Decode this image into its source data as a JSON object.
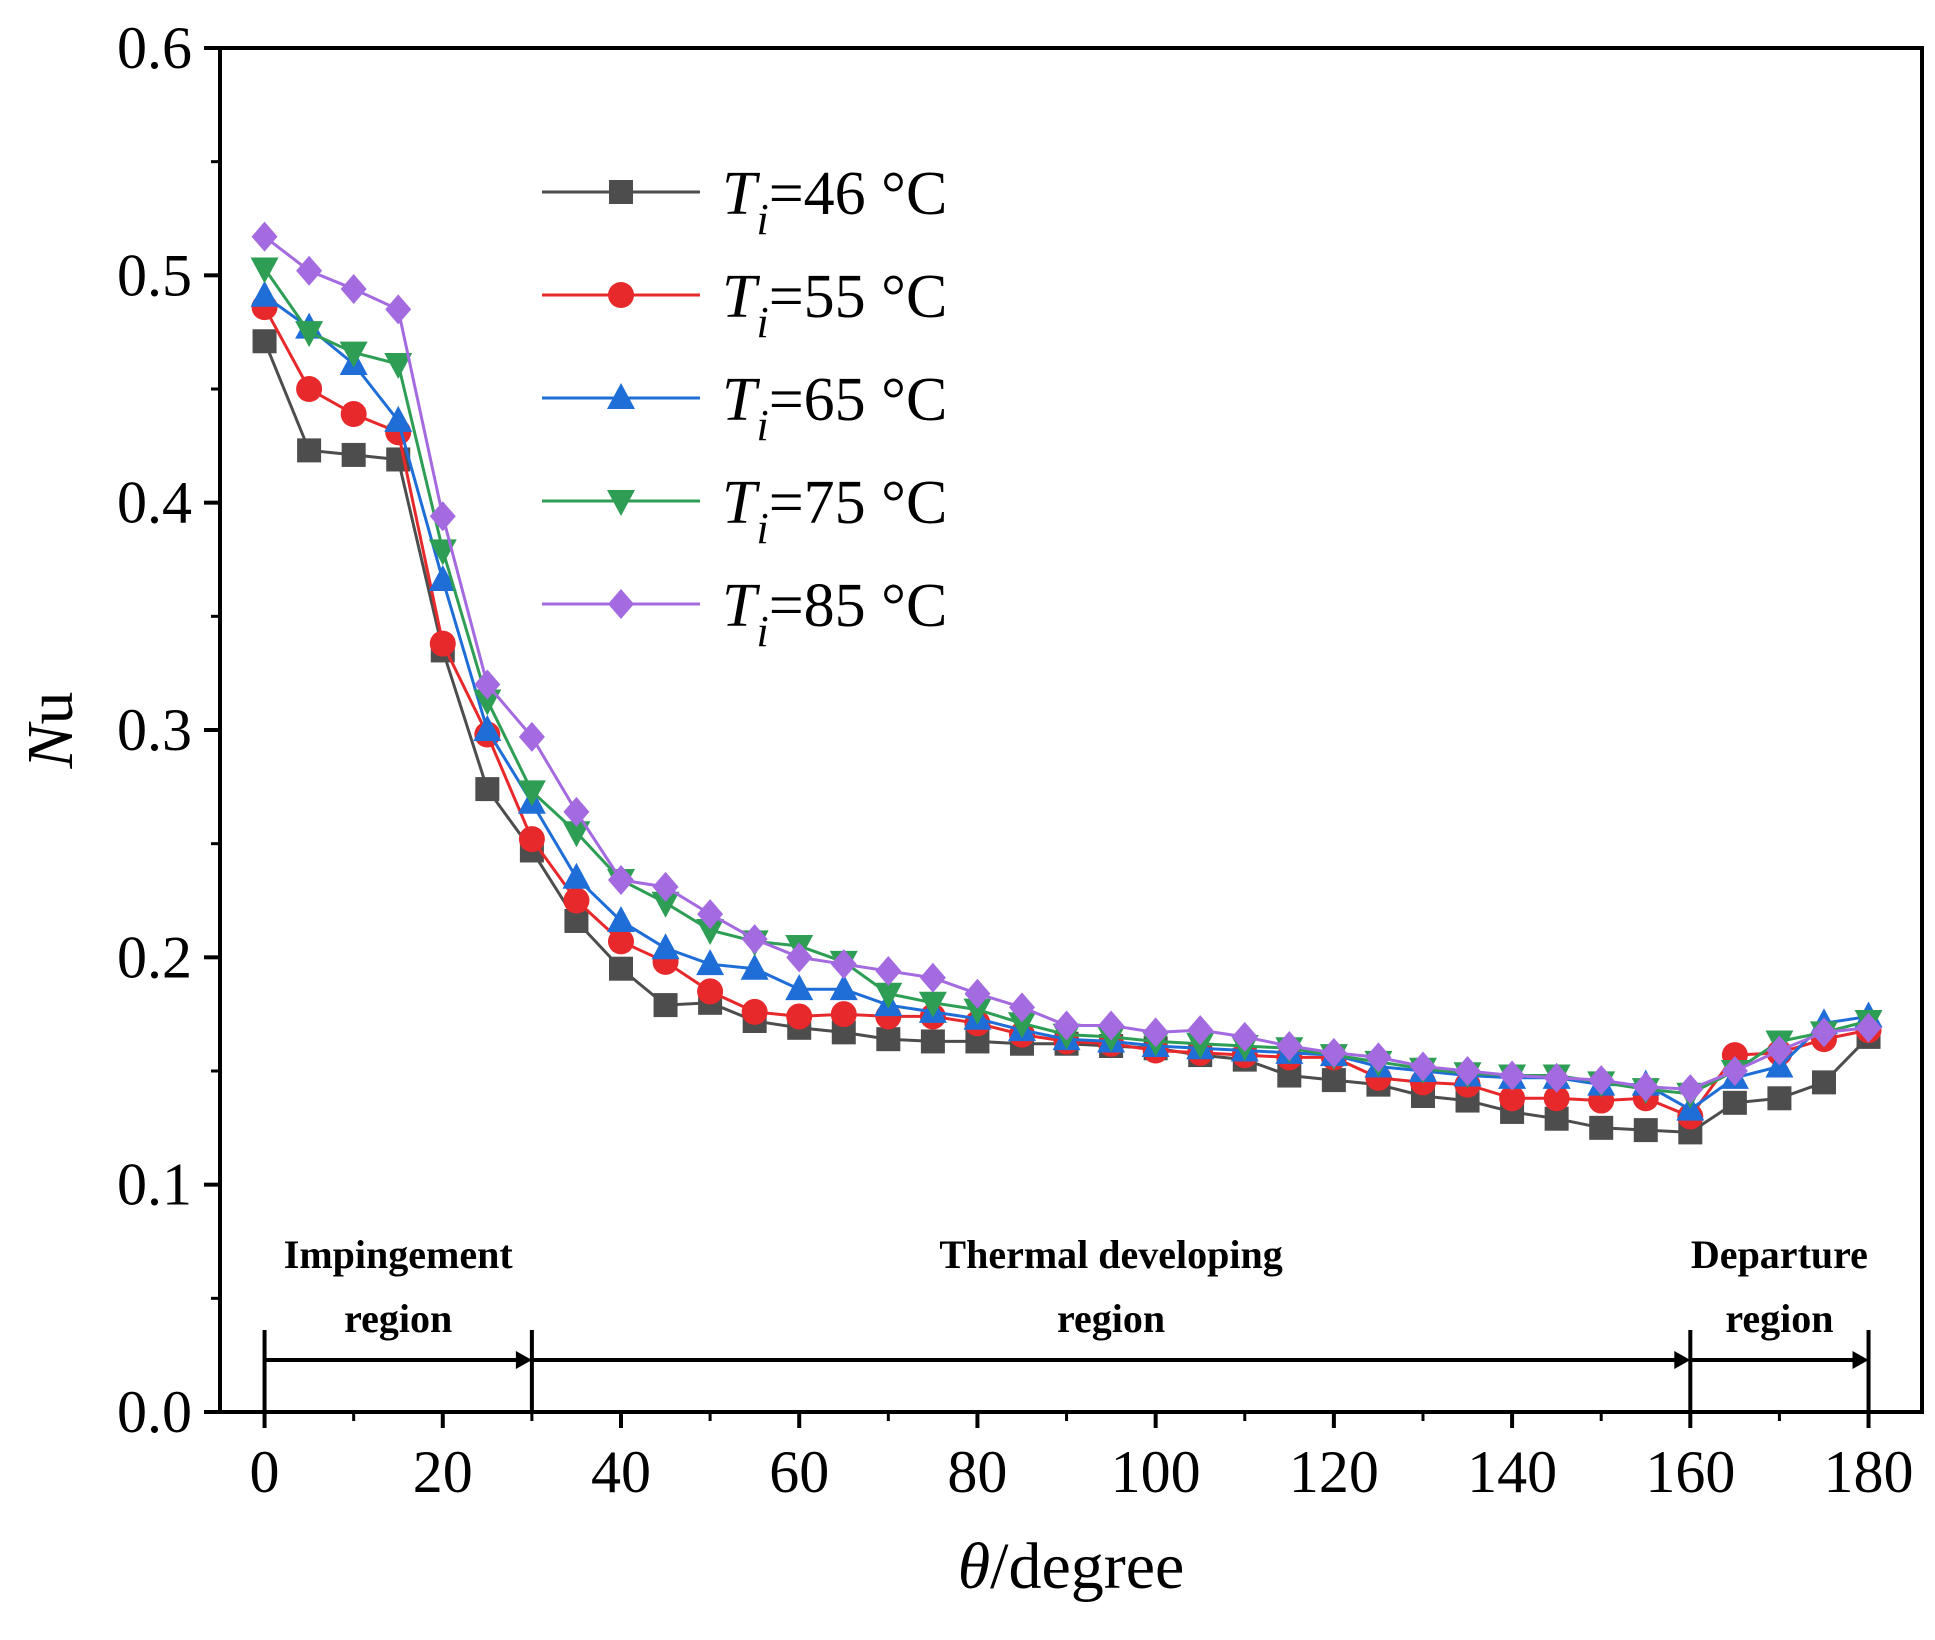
{
  "chart_data": {
    "type": "line",
    "title": "",
    "xlabel": {
      "symbol": "θ",
      "text": "/degree"
    },
    "ylabel": {
      "symbol": "N",
      "text": "u"
    },
    "xlim": [
      -5,
      186
    ],
    "ylim": [
      0,
      0.6
    ],
    "xticks": [
      0,
      20,
      40,
      60,
      80,
      100,
      120,
      140,
      160,
      180
    ],
    "yticks": [
      0.0,
      0.1,
      0.2,
      0.3,
      0.4,
      0.5,
      0.6
    ],
    "ytick_labels": [
      "0.0",
      "0.1",
      "0.2",
      "0.3",
      "0.4",
      "0.5",
      "0.6"
    ],
    "legend_position": "upper-left",
    "x": [
      0,
      5,
      10,
      15,
      20,
      25,
      30,
      35,
      40,
      45,
      50,
      55,
      60,
      65,
      70,
      75,
      80,
      85,
      90,
      95,
      100,
      105,
      110,
      115,
      120,
      125,
      130,
      135,
      140,
      145,
      150,
      155,
      160,
      165,
      170,
      175,
      180
    ],
    "series": [
      {
        "name": "46 °C",
        "label_prefix": "T",
        "label_sub": "i",
        "label_suffix": "=46 °C",
        "color": "#4d4d4d",
        "marker": "square",
        "values": [
          0.471,
          0.423,
          0.421,
          0.419,
          0.335,
          0.274,
          0.247,
          0.216,
          0.195,
          0.179,
          0.18,
          0.172,
          0.169,
          0.167,
          0.164,
          0.163,
          0.163,
          0.162,
          0.162,
          0.161,
          0.16,
          0.157,
          0.155,
          0.148,
          0.146,
          0.144,
          0.139,
          0.137,
          0.132,
          0.129,
          0.125,
          0.124,
          0.123,
          0.136,
          0.138,
          0.145,
          0.165
        ]
      },
      {
        "name": "55 °C",
        "label_prefix": "T",
        "label_sub": "i",
        "label_suffix": "=55 °C",
        "color": "#e8292b",
        "marker": "circle",
        "values": [
          0.486,
          0.45,
          0.439,
          0.431,
          0.338,
          0.298,
          0.252,
          0.225,
          0.207,
          0.198,
          0.185,
          0.176,
          0.174,
          0.175,
          0.174,
          0.174,
          0.171,
          0.166,
          0.163,
          0.162,
          0.159,
          0.158,
          0.157,
          0.156,
          0.156,
          0.147,
          0.145,
          0.144,
          0.138,
          0.138,
          0.137,
          0.138,
          0.13,
          0.157,
          0.158,
          0.164,
          0.168
        ]
      },
      {
        "name": "65 °C",
        "label_prefix": "T",
        "label_sub": "i",
        "label_suffix": "=65 °C",
        "color": "#1f6ed8",
        "marker": "triangle-up",
        "values": [
          0.491,
          0.477,
          0.461,
          0.436,
          0.366,
          0.3,
          0.268,
          0.235,
          0.216,
          0.204,
          0.197,
          0.195,
          0.186,
          0.186,
          0.179,
          0.176,
          0.173,
          0.168,
          0.164,
          0.163,
          0.161,
          0.16,
          0.159,
          0.158,
          0.157,
          0.152,
          0.15,
          0.148,
          0.147,
          0.147,
          0.144,
          0.144,
          0.133,
          0.147,
          0.152,
          0.171,
          0.174
        ]
      },
      {
        "name": "75 °C",
        "label_prefix": "T",
        "label_sub": "i",
        "label_suffix": "=75 °C",
        "color": "#2e9e55",
        "marker": "triangle-down",
        "values": [
          0.503,
          0.475,
          0.466,
          0.461,
          0.379,
          0.313,
          0.273,
          0.255,
          0.234,
          0.224,
          0.212,
          0.207,
          0.205,
          0.198,
          0.184,
          0.18,
          0.177,
          0.171,
          0.166,
          0.165,
          0.163,
          0.162,
          0.161,
          0.16,
          0.157,
          0.154,
          0.151,
          0.149,
          0.148,
          0.148,
          0.145,
          0.142,
          0.14,
          0.15,
          0.163,
          0.167,
          0.172
        ]
      },
      {
        "name": "85 °C",
        "label_prefix": "T",
        "label_sub": "i",
        "label_suffix": "=85 °C",
        "color": "#a46ae0",
        "marker": "diamond",
        "values": [
          0.517,
          0.502,
          0.494,
          0.485,
          0.394,
          0.32,
          0.297,
          0.264,
          0.234,
          0.231,
          0.219,
          0.208,
          0.2,
          0.197,
          0.194,
          0.191,
          0.184,
          0.178,
          0.17,
          0.17,
          0.167,
          0.168,
          0.165,
          0.161,
          0.158,
          0.156,
          0.152,
          0.15,
          0.148,
          0.147,
          0.146,
          0.143,
          0.142,
          0.15,
          0.159,
          0.167,
          0.169
        ]
      }
    ],
    "regions": [
      {
        "line1": "Impingement",
        "line2": "region",
        "from": 0,
        "to": 30
      },
      {
        "line1": "Thermal developing",
        "line2": "region",
        "from": 30,
        "to": 160
      },
      {
        "line1": "Departure",
        "line2": "region",
        "from": 160,
        "to": 180
      }
    ]
  }
}
